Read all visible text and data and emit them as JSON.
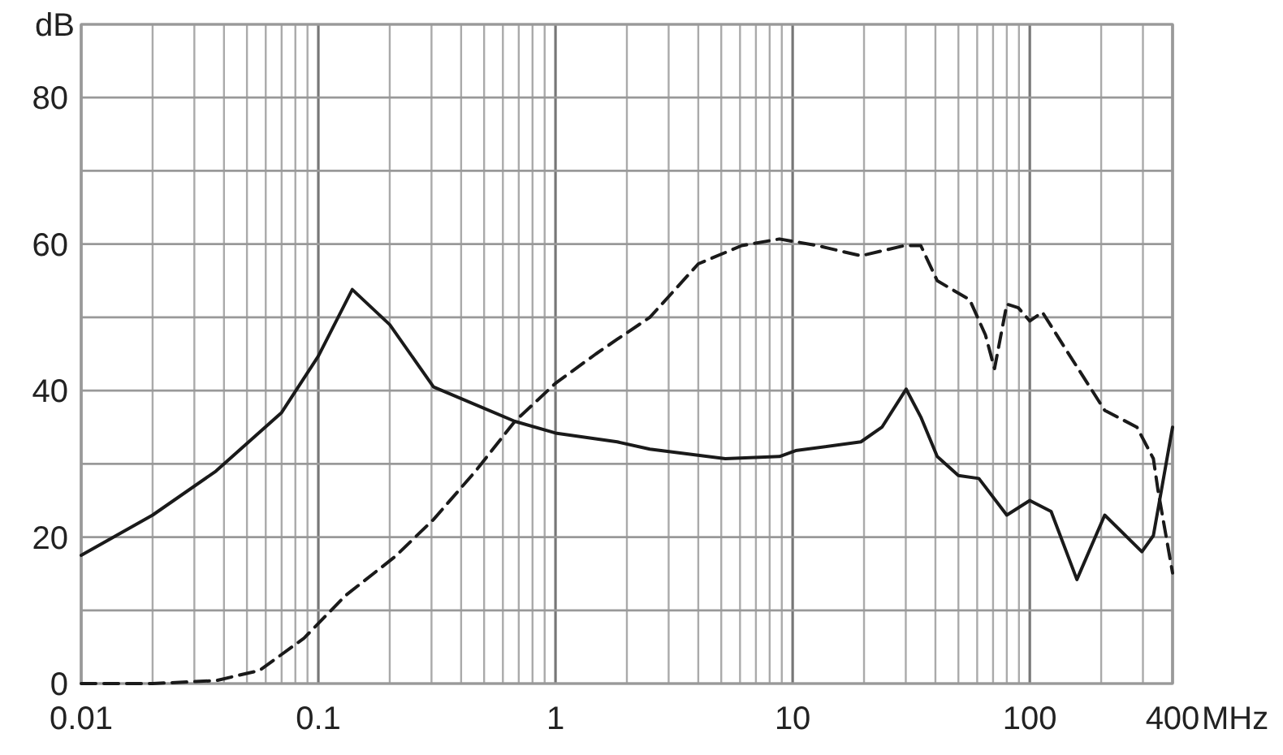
{
  "chart_data": {
    "type": "line",
    "xlabel": "MHz",
    "ylabel": "dB",
    "log": "x",
    "grid": true,
    "xlim": [
      0.01,
      400
    ],
    "ylim": [
      0,
      90
    ],
    "xticks": [
      0.01,
      {
        "value": 0.02,
        "label": null
      },
      {
        "value": 0.03,
        "label": null
      },
      {
        "value": 0.04,
        "label": null
      },
      {
        "value": 0.05,
        "label": null
      },
      {
        "value": 0.06,
        "label": null
      },
      {
        "value": 0.07,
        "label": null
      },
      {
        "value": 0.08,
        "label": null
      },
      {
        "value": 0.09,
        "label": null
      },
      0.1,
      {
        "value": 0.2,
        "label": null
      },
      {
        "value": 0.3,
        "label": null
      },
      {
        "value": 0.4,
        "label": null
      },
      {
        "value": 0.5,
        "label": null
      },
      {
        "value": 0.6,
        "label": null
      },
      {
        "value": 0.7,
        "label": null
      },
      {
        "value": 0.8,
        "label": null
      },
      {
        "value": 0.9,
        "label": null
      },
      1,
      {
        "value": 2,
        "label": null
      },
      {
        "value": 3,
        "label": null
      },
      {
        "value": 4,
        "label": null
      },
      {
        "value": 5,
        "label": null
      },
      {
        "value": 6,
        "label": null
      },
      {
        "value": 7,
        "label": null
      },
      {
        "value": 8,
        "label": null
      },
      {
        "value": 9,
        "label": null
      },
      10,
      {
        "value": 20,
        "label": null
      },
      {
        "value": 30,
        "label": null
      },
      {
        "value": 40,
        "label": null
      },
      {
        "value": 50,
        "label": null
      },
      {
        "value": 60,
        "label": null
      },
      {
        "value": 70,
        "label": null
      },
      {
        "value": 80,
        "label": null
      },
      {
        "value": 90,
        "label": null
      },
      100,
      {
        "value": 200,
        "label": null
      },
      {
        "value": 300,
        "label": null
      },
      400
    ],
    "yticks": [
      0,
      {
        "value": 10,
        "label": null
      },
      20,
      {
        "value": 30,
        "label": null
      },
      40,
      {
        "value": 50,
        "label": null
      },
      60,
      {
        "value": 70,
        "label": null
      },
      80,
      {
        "value": 90,
        "label": null
      }
    ],
    "series": [
      {
        "color": "#1a1a1a",
        "line_style": "solid",
        "x": [
          0.01,
          0.02,
          0.037,
          0.07,
          0.1,
          0.139,
          0.2,
          0.306,
          0.674,
          1,
          1.82,
          2.5,
          5.2,
          8.8,
          10.3,
          19.4,
          23.8,
          30.1,
          34.7,
          40.7,
          50,
          61,
          80,
          100,
          123,
          158,
          207,
          297,
          332,
          400
        ],
        "values": [
          17.5,
          23,
          29,
          37,
          44.7,
          53.8,
          49,
          40.5,
          35.8,
          34.2,
          33,
          32,
          30.7,
          31,
          31.8,
          33,
          35,
          40.2,
          36.4,
          31,
          28.4,
          28,
          23,
          25,
          23.5,
          14.2,
          23,
          18,
          20.2,
          35
        ]
      },
      {
        "color": "#1a1a1a",
        "line_style": "dashed",
        "x": [
          0.01,
          0.02,
          0.037,
          0.0566,
          0.087,
          0.13,
          0.21,
          0.306,
          0.46,
          0.674,
          1,
          1.48,
          1.82,
          2.5,
          4,
          6.1,
          8.8,
          12.7,
          19.4,
          29.7,
          34.7,
          40.7,
          55.8,
          65,
          71,
          80,
          89.5,
          100,
          113,
          144,
          207,
          283,
          332,
          348,
          400
        ],
        "values": [
          0,
          0,
          0.4,
          1.8,
          6.2,
          12,
          17.3,
          22.4,
          29,
          35.8,
          41,
          45,
          47,
          50,
          57.3,
          59.8,
          60.7,
          59.8,
          58.4,
          59.8,
          59.8,
          55,
          52.4,
          47.6,
          43,
          51.8,
          51.3,
          49.5,
          50.7,
          45.3,
          37.3,
          35,
          30.7,
          26.2,
          15.1
        ]
      }
    ]
  }
}
